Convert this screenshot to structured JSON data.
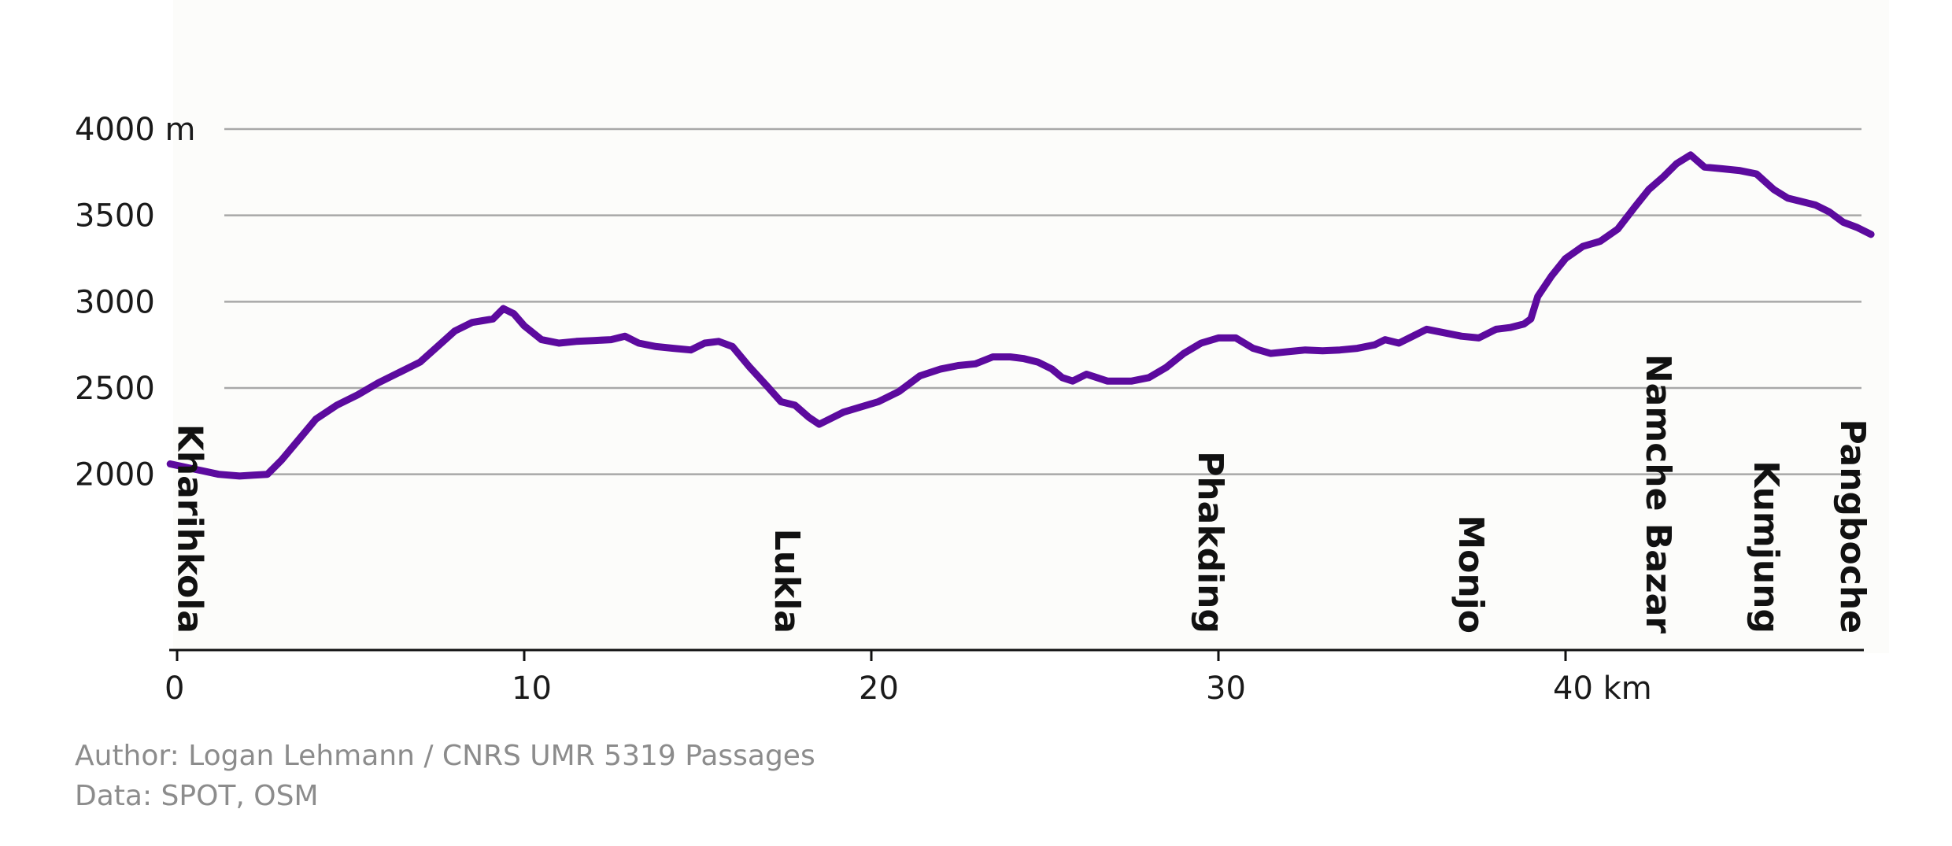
{
  "chart_data": {
    "type": "line",
    "title": "",
    "xlabel": "",
    "ylabel": "",
    "x_unit_label": "km",
    "y_unit_label": "m",
    "xlim": [
      0,
      48.8
    ],
    "ylim": [
      1000,
      4000
    ],
    "x_ticks": [
      {
        "value": 0,
        "label": "0"
      },
      {
        "value": 10,
        "label": "10"
      },
      {
        "value": 20,
        "label": "20"
      },
      {
        "value": 30,
        "label": "30"
      },
      {
        "value": 40,
        "label": "40 km"
      }
    ],
    "y_ticks": [
      {
        "value": 2000,
        "label": "2000"
      },
      {
        "value": 2500,
        "label": "2500"
      },
      {
        "value": 3000,
        "label": "3000"
      },
      {
        "value": 3500,
        "label": "3500"
      },
      {
        "value": 4000,
        "label": "4000 m"
      }
    ],
    "grid": true,
    "series": [
      {
        "color": "#5c0a9e",
        "x": [
          -0.2,
          0.5,
          1.2,
          1.8,
          2.2,
          2.6,
          3.0,
          3.5,
          4.0,
          4.6,
          5.2,
          5.8,
          6.4,
          7.0,
          7.5,
          8.0,
          8.5,
          8.8,
          9.1,
          9.4,
          9.7,
          10.0,
          10.5,
          11.0,
          11.5,
          12.0,
          12.5,
          12.9,
          13.3,
          13.8,
          14.3,
          14.8,
          15.2,
          15.6,
          16.0,
          16.5,
          17.0,
          17.4,
          17.8,
          18.2,
          18.5,
          18.8,
          19.2,
          19.7,
          20.2,
          20.8,
          21.4,
          22.0,
          22.5,
          23.0,
          23.5,
          24.0,
          24.4,
          24.8,
          25.2,
          25.5,
          25.8,
          26.2,
          26.8,
          27.5,
          28.0,
          28.5,
          29.0,
          29.5,
          30.0,
          30.5,
          31.0,
          31.5,
          32.0,
          32.5,
          33.0,
          33.5,
          34.0,
          34.5,
          34.8,
          35.2,
          35.6,
          36.0,
          36.5,
          37.0,
          37.5,
          38.0,
          38.4,
          38.8,
          39.0,
          39.2,
          39.6,
          40.0,
          40.5,
          41.0,
          41.5,
          42.0,
          42.4,
          42.8,
          43.2,
          43.6,
          44.0,
          44.5,
          45.0,
          45.5,
          46.0,
          46.4,
          46.8,
          47.2,
          47.6,
          48.0,
          48.4,
          48.8
        ],
        "y": [
          2060,
          2030,
          2000,
          1990,
          1995,
          2000,
          2080,
          2200,
          2320,
          2400,
          2460,
          2530,
          2590,
          2650,
          2740,
          2830,
          2880,
          2890,
          2900,
          2960,
          2930,
          2860,
          2780,
          2760,
          2770,
          2775,
          2780,
          2800,
          2760,
          2740,
          2730,
          2720,
          2760,
          2770,
          2740,
          2620,
          2510,
          2420,
          2400,
          2330,
          2290,
          2320,
          2360,
          2390,
          2420,
          2480,
          2570,
          2610,
          2630,
          2640,
          2680,
          2680,
          2670,
          2650,
          2610,
          2560,
          2540,
          2580,
          2540,
          2540,
          2560,
          2620,
          2700,
          2760,
          2790,
          2790,
          2730,
          2700,
          2710,
          2720,
          2715,
          2720,
          2730,
          2750,
          2780,
          2760,
          2800,
          2840,
          2820,
          2800,
          2790,
          2840,
          2850,
          2870,
          2900,
          3030,
          3150,
          3250,
          3320,
          3350,
          3420,
          3550,
          3650,
          3720,
          3800,
          3850,
          3780,
          3770,
          3760,
          3740,
          3650,
          3600,
          3580,
          3560,
          3520,
          3460,
          3430,
          3390
        ]
      }
    ],
    "annotations": [
      {
        "label": "Kharihkola",
        "x": 0.4
      },
      {
        "label": "Lukla",
        "x": 17.6
      },
      {
        "label": "Phakding",
        "x": 29.8
      },
      {
        "label": "Monjo",
        "x": 37.3
      },
      {
        "label": "Namche Bazar",
        "x": 42.7
      },
      {
        "label": "Kumjung",
        "x": 45.8
      },
      {
        "label": "Pangboche",
        "x": 48.3
      }
    ]
  },
  "credits": {
    "author": "Author:  Logan Lehmann / CNRS UMR 5319 Passages",
    "data": "Data: SPOT, OSM"
  }
}
